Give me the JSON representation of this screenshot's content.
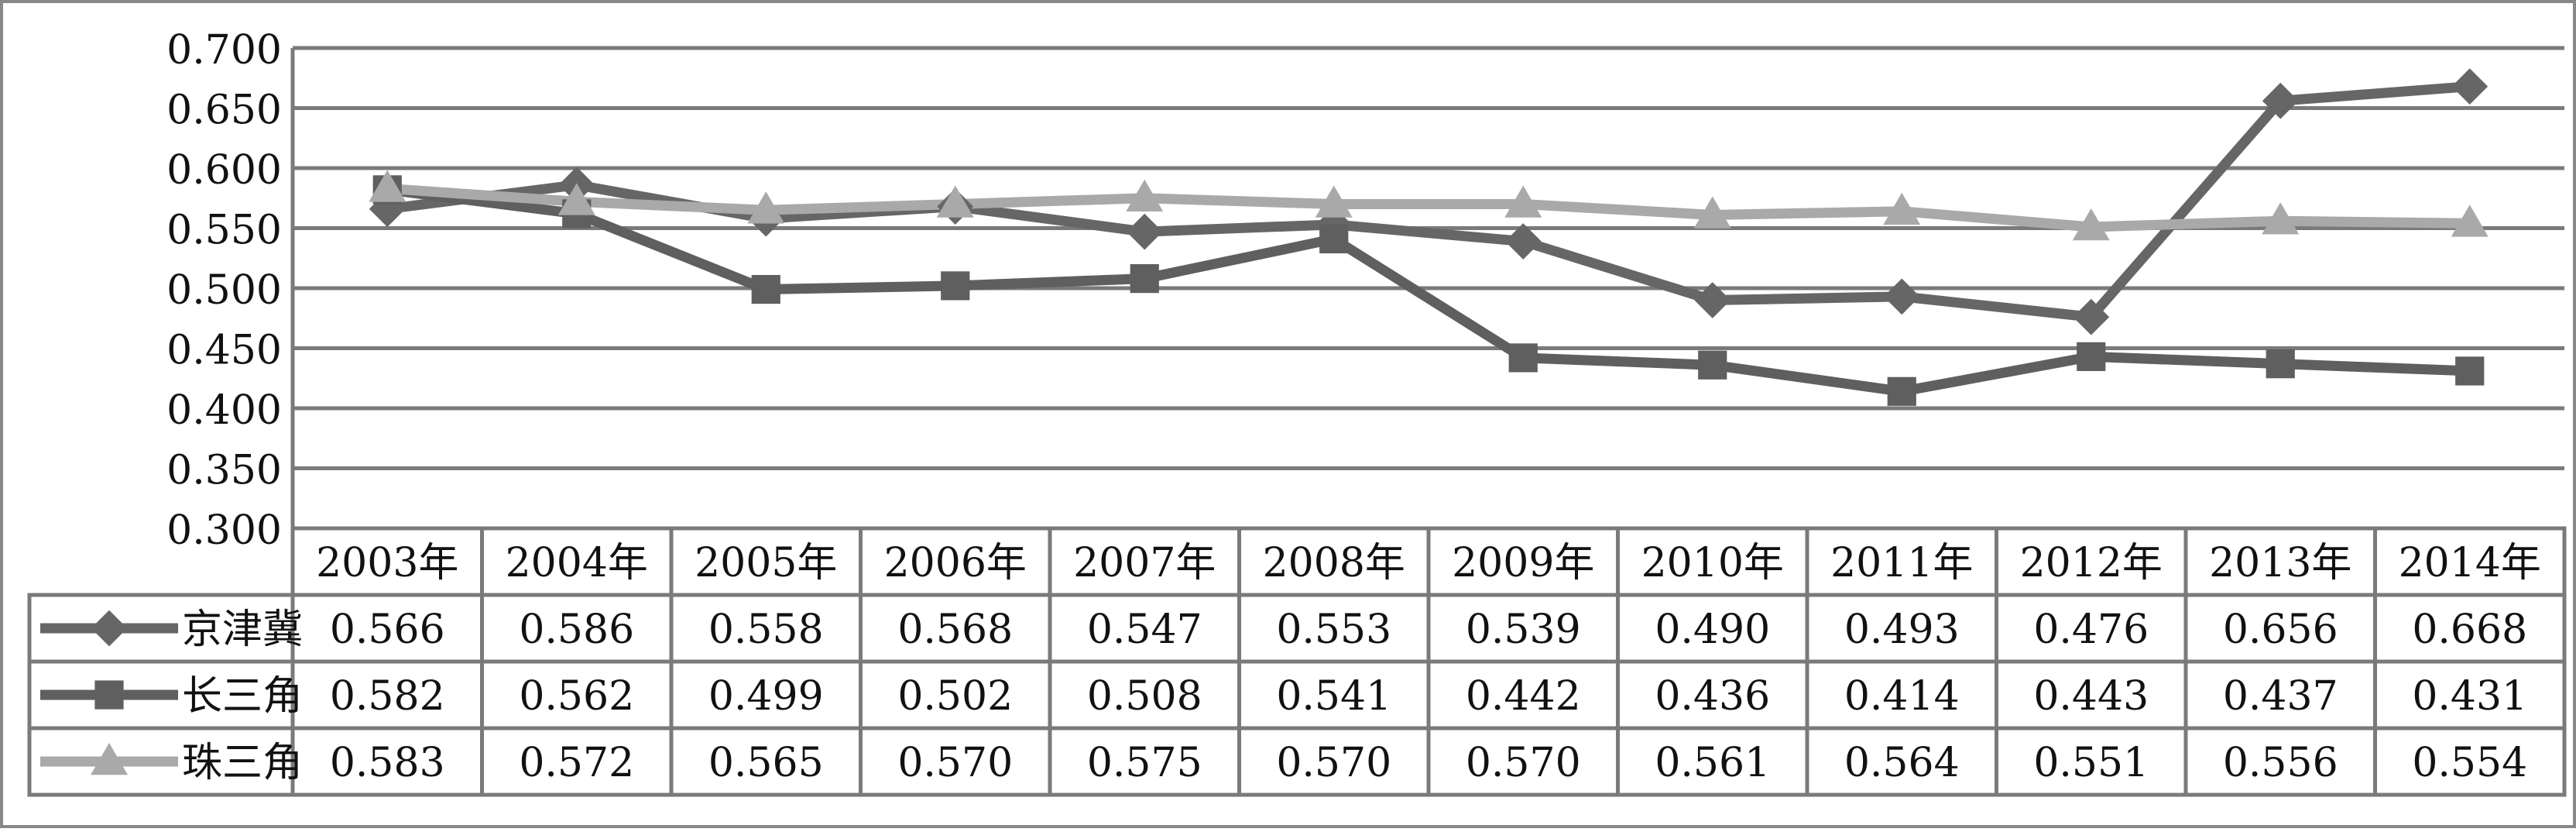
{
  "chart_data": {
    "type": "line",
    "title": "",
    "xlabel": "",
    "ylabel": "",
    "ylim": [
      0.3,
      0.7
    ],
    "y_ticks": [
      "0.700",
      "0.650",
      "0.600",
      "0.550",
      "0.500",
      "0.450",
      "0.400",
      "0.350",
      "0.300"
    ],
    "grid": true,
    "legend": "data-table-left",
    "categories": [
      "2003年",
      "2004年",
      "2005年",
      "2006年",
      "2007年",
      "2008年",
      "2009年",
      "2010年",
      "2011年",
      "2012年",
      "2013年",
      "2014年"
    ],
    "series": [
      {
        "name": "京津冀",
        "marker": "diamond",
        "color": "#666666",
        "values": [
          0.566,
          0.586,
          0.558,
          0.568,
          0.547,
          0.553,
          0.539,
          0.49,
          0.493,
          0.476,
          0.656,
          0.668
        ],
        "labels": [
          "0.566",
          "0.586",
          "0.558",
          "0.568",
          "0.547",
          "0.553",
          "0.539",
          "0.490",
          "0.493",
          "0.476",
          "0.656",
          "0.668"
        ]
      },
      {
        "name": "长三角",
        "marker": "square",
        "color": "#5f5f5f",
        "values": [
          0.582,
          0.562,
          0.499,
          0.502,
          0.508,
          0.541,
          0.442,
          0.436,
          0.414,
          0.443,
          0.437,
          0.431
        ],
        "labels": [
          "0.582",
          "0.562",
          "0.499",
          "0.502",
          "0.508",
          "0.541",
          "0.442",
          "0.436",
          "0.414",
          "0.443",
          "0.437",
          "0.431"
        ]
      },
      {
        "name": "珠三角",
        "marker": "triangle",
        "color": "#a9a9a9",
        "values": [
          0.583,
          0.572,
          0.565,
          0.57,
          0.575,
          0.57,
          0.57,
          0.561,
          0.564,
          0.551,
          0.556,
          0.554
        ],
        "labels": [
          "0.583",
          "0.572",
          "0.565",
          "0.570",
          "0.575",
          "0.570",
          "0.570",
          "0.561",
          "0.564",
          "0.551",
          "0.556",
          "0.554"
        ]
      }
    ]
  }
}
